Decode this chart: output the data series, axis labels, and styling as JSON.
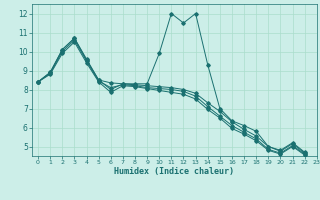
{
  "bg_color": "#cceee8",
  "grid_color": "#aaddcc",
  "line_color": "#1a7070",
  "xlabel": "Humidex (Indice chaleur)",
  "xlim": [
    -0.5,
    23
  ],
  "ylim": [
    4.5,
    12.5
  ],
  "yticks": [
    5,
    6,
    7,
    8,
    9,
    10,
    11,
    12
  ],
  "xticks": [
    0,
    1,
    2,
    3,
    4,
    5,
    6,
    7,
    8,
    9,
    10,
    11,
    12,
    13,
    14,
    15,
    16,
    17,
    18,
    19,
    20,
    21,
    22,
    23
  ],
  "series": [
    {
      "x": [
        0,
        1,
        2,
        3,
        4,
        5,
        6,
        7,
        8,
        9,
        10,
        11,
        12,
        13,
        14,
        15,
        16,
        17,
        18,
        19,
        20,
        21,
        22
      ],
      "y": [
        8.4,
        8.9,
        10.1,
        10.7,
        9.6,
        8.5,
        8.0,
        8.3,
        8.3,
        8.3,
        9.9,
        12.0,
        11.5,
        12.0,
        9.3,
        7.0,
        6.35,
        6.1,
        5.8,
        5.0,
        4.8,
        5.2,
        4.7
      ]
    },
    {
      "x": [
        0,
        1,
        2,
        3,
        4,
        5,
        6,
        7,
        8,
        9,
        10,
        11,
        12,
        13,
        14,
        15,
        16,
        17,
        18,
        19,
        20,
        21,
        22
      ],
      "y": [
        8.4,
        8.9,
        10.1,
        10.7,
        9.55,
        8.5,
        8.35,
        8.3,
        8.25,
        8.2,
        8.15,
        8.1,
        8.0,
        7.8,
        7.3,
        6.85,
        6.3,
        5.9,
        5.55,
        5.0,
        4.75,
        5.15,
        4.65
      ]
    },
    {
      "x": [
        0,
        1,
        2,
        3,
        4,
        5,
        6,
        7,
        8,
        9,
        10,
        11,
        12,
        13,
        14,
        15,
        16,
        17,
        18,
        19,
        20,
        21,
        22
      ],
      "y": [
        8.4,
        8.85,
        10.0,
        10.6,
        9.5,
        8.45,
        8.1,
        8.25,
        8.2,
        8.1,
        8.05,
        8.0,
        7.9,
        7.65,
        7.1,
        6.6,
        6.1,
        5.75,
        5.4,
        4.85,
        4.65,
        5.05,
        4.6
      ]
    },
    {
      "x": [
        0,
        1,
        2,
        3,
        4,
        5,
        6,
        7,
        8,
        9,
        10,
        11,
        12,
        13,
        14,
        15,
        16,
        17,
        18,
        19,
        20,
        21,
        22
      ],
      "y": [
        8.4,
        8.8,
        9.9,
        10.5,
        9.4,
        8.4,
        7.85,
        8.2,
        8.15,
        8.05,
        7.95,
        7.85,
        7.75,
        7.5,
        6.95,
        6.5,
        5.95,
        5.65,
        5.3,
        4.8,
        4.6,
        5.0,
        4.55
      ]
    }
  ]
}
